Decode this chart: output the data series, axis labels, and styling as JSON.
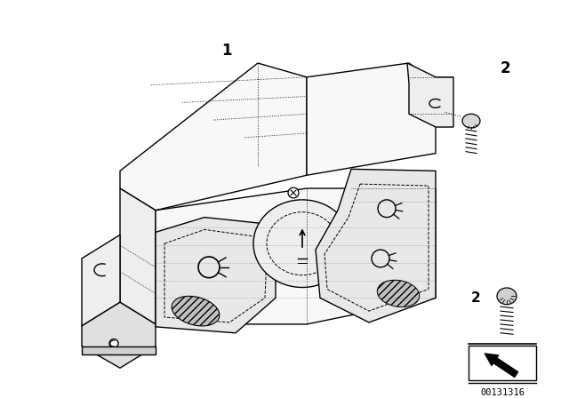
{
  "bg_color": "#ffffff",
  "line_color": "#000000",
  "label1": "1",
  "label2": "2",
  "part_number": "00131316",
  "lw_main": 1.0,
  "lw_thin": 0.6,
  "face_light": "#f8f8f8",
  "face_mid": "#eeeeee",
  "face_dark": "#e0e0e0",
  "face_darker": "#d0d0d0",
  "knob_face": "#e8e8e8",
  "dot_color": "#555555"
}
